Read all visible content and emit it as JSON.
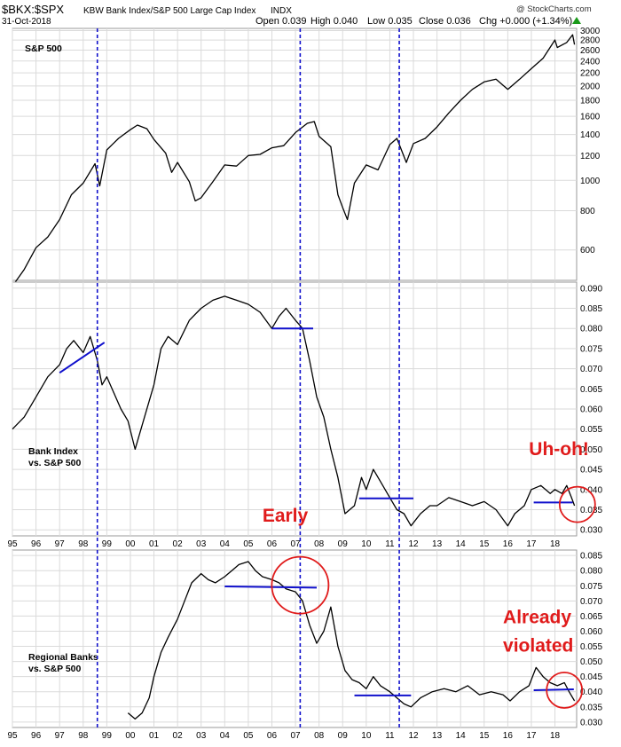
{
  "header": {
    "symbol": "$BKX:$SPX",
    "description": "KBW Bank Index/S&P 500 Large Cap Index",
    "exchange": "INDX",
    "date": "31-Oct-2018",
    "credit": "@ StockCharts.com",
    "ohlc": [
      {
        "label": "Open",
        "value": "0.039"
      },
      {
        "label": "High",
        "value": "0.040"
      },
      {
        "label": "Low",
        "value": "0.035"
      },
      {
        "label": "Close",
        "value": "0.036"
      },
      {
        "label": "Chg",
        "value": "+0.000 (+1.34%)"
      }
    ],
    "change_color": "#1a9a1a"
  },
  "colors": {
    "price": "#000000",
    "grid": "#dadada",
    "vertical_markers": "#1010cc",
    "trend_lines": "#1010cc",
    "annotations": "#e01b1b"
  },
  "chart_data": [
    {
      "type": "line",
      "name": "S&P 500",
      "title": "S&P 500",
      "y_scale": "log",
      "ylim": [
        480,
        3050
      ],
      "yticks": [
        600,
        800,
        1000,
        1200,
        1400,
        1600,
        1800,
        2000,
        2200,
        2400,
        2600,
        2800,
        3000
      ],
      "x": [
        1995.0,
        1995.5,
        1996.0,
        1996.5,
        1997.0,
        1997.5,
        1998.0,
        1998.5,
        1998.7,
        1999.0,
        1999.5,
        2000.0,
        2000.3,
        2000.7,
        2001.0,
        2001.5,
        2001.75,
        2002.0,
        2002.5,
        2002.75,
        2003.0,
        2003.5,
        2004.0,
        2004.5,
        2005.0,
        2005.5,
        2006.0,
        2006.5,
        2007.0,
        2007.5,
        2007.8,
        2008.0,
        2008.5,
        2008.8,
        2009.0,
        2009.2,
        2009.5,
        2010.0,
        2010.5,
        2011.0,
        2011.3,
        2011.7,
        2012.0,
        2012.5,
        2013.0,
        2013.5,
        2014.0,
        2014.5,
        2015.0,
        2015.5,
        2016.0,
        2016.5,
        2017.0,
        2017.5,
        2018.0,
        2018.1,
        2018.5,
        2018.75,
        2018.83
      ],
      "values": [
        460,
        520,
        610,
        660,
        750,
        900,
        980,
        1130,
        960,
        1250,
        1360,
        1450,
        1500,
        1460,
        1350,
        1220,
        1060,
        1140,
        990,
        860,
        880,
        990,
        1120,
        1110,
        1200,
        1210,
        1270,
        1290,
        1420,
        1520,
        1540,
        1380,
        1280,
        900,
        820,
        750,
        980,
        1120,
        1080,
        1300,
        1360,
        1140,
        1310,
        1360,
        1480,
        1640,
        1800,
        1950,
        2060,
        2100,
        1950,
        2100,
        2270,
        2450,
        2800,
        2650,
        2750,
        2910,
        2710
      ]
    },
    {
      "type": "line",
      "name": "Bank Index vs. S&P 500",
      "title": "Bank Index\nvs. S&P 500",
      "ylim": [
        0.0285,
        0.0915
      ],
      "yticks": [
        0.03,
        0.035,
        0.04,
        0.045,
        0.05,
        0.055,
        0.06,
        0.065,
        0.07,
        0.075,
        0.08,
        0.085,
        0.09
      ],
      "x": [
        1995.0,
        1995.5,
        1996.0,
        1996.5,
        1997.0,
        1997.3,
        1997.6,
        1998.0,
        1998.3,
        1998.6,
        1998.8,
        1999.0,
        1999.3,
        1999.6,
        1999.9,
        2000.2,
        2000.6,
        2001.0,
        2001.3,
        2001.6,
        2002.0,
        2002.5,
        2003.0,
        2003.5,
        2004.0,
        2004.5,
        2005.0,
        2005.5,
        2006.0,
        2006.3,
        2006.6,
        2007.0,
        2007.3,
        2007.6,
        2007.9,
        2008.2,
        2008.5,
        2008.8,
        2009.1,
        2009.5,
        2009.8,
        2010.0,
        2010.3,
        2010.6,
        2011.0,
        2011.3,
        2011.6,
        2011.9,
        2012.3,
        2012.7,
        2013.0,
        2013.5,
        2014.0,
        2014.5,
        2015.0,
        2015.5,
        2016.0,
        2016.3,
        2016.7,
        2017.0,
        2017.4,
        2017.8,
        2018.0,
        2018.3,
        2018.5,
        2018.7,
        2018.83
      ],
      "values": [
        0.055,
        0.058,
        0.063,
        0.068,
        0.071,
        0.075,
        0.077,
        0.074,
        0.078,
        0.072,
        0.066,
        0.068,
        0.064,
        0.06,
        0.057,
        0.05,
        0.058,
        0.066,
        0.075,
        0.078,
        0.076,
        0.082,
        0.085,
        0.087,
        0.088,
        0.087,
        0.086,
        0.084,
        0.08,
        0.083,
        0.085,
        0.082,
        0.08,
        0.072,
        0.063,
        0.058,
        0.05,
        0.043,
        0.034,
        0.036,
        0.043,
        0.04,
        0.045,
        0.042,
        0.038,
        0.035,
        0.034,
        0.031,
        0.034,
        0.036,
        0.036,
        0.038,
        0.037,
        0.036,
        0.037,
        0.035,
        0.031,
        0.034,
        0.036,
        0.04,
        0.041,
        0.039,
        0.04,
        0.039,
        0.041,
        0.038,
        0.036
      ],
      "title_lines": [
        "Bank Index",
        "vs. S&P 500"
      ]
    },
    {
      "type": "line",
      "name": "Regional Banks vs. S&P 500",
      "title": "Regional Banks\nvs. S&P 500",
      "ylim": [
        0.0282,
        0.0868
      ],
      "yticks": [
        0.03,
        0.035,
        0.04,
        0.045,
        0.05,
        0.055,
        0.06,
        0.065,
        0.07,
        0.075,
        0.08,
        0.085
      ],
      "x": [
        1999.9,
        2000.2,
        2000.5,
        2000.8,
        2001.0,
        2001.3,
        2001.6,
        2002.0,
        2002.3,
        2002.6,
        2003.0,
        2003.3,
        2003.6,
        2004.0,
        2004.3,
        2004.6,
        2005.0,
        2005.3,
        2005.6,
        2006.0,
        2006.3,
        2006.6,
        2007.0,
        2007.3,
        2007.6,
        2007.9,
        2008.2,
        2008.5,
        2008.8,
        2009.1,
        2009.4,
        2009.7,
        2010.0,
        2010.3,
        2010.6,
        2011.0,
        2011.3,
        2011.6,
        2011.9,
        2012.3,
        2012.8,
        2013.3,
        2013.8,
        2014.3,
        2014.8,
        2015.3,
        2015.8,
        2016.1,
        2016.5,
        2016.9,
        2017.2,
        2017.5,
        2017.8,
        2018.1,
        2018.4,
        2018.6,
        2018.83
      ],
      "values": [
        0.033,
        0.031,
        0.033,
        0.038,
        0.045,
        0.053,
        0.058,
        0.064,
        0.07,
        0.076,
        0.079,
        0.077,
        0.076,
        0.078,
        0.08,
        0.082,
        0.083,
        0.08,
        0.078,
        0.077,
        0.076,
        0.074,
        0.073,
        0.07,
        0.062,
        0.056,
        0.06,
        0.068,
        0.055,
        0.047,
        0.044,
        0.043,
        0.041,
        0.045,
        0.042,
        0.04,
        0.038,
        0.036,
        0.035,
        0.038,
        0.04,
        0.041,
        0.04,
        0.042,
        0.039,
        0.04,
        0.039,
        0.037,
        0.04,
        0.042,
        0.048,
        0.045,
        0.043,
        0.042,
        0.043,
        0.04,
        0.037
      ],
      "title_lines": [
        "Regional Banks",
        "vs. S&P 500"
      ]
    }
  ],
  "x_axis": {
    "start_year": 1995,
    "end_year": 2018.92,
    "labels": [
      "95",
      "96",
      "97",
      "98",
      "99",
      "00",
      "01",
      "02",
      "03",
      "04",
      "05",
      "06",
      "07",
      "08",
      "09",
      "10",
      "11",
      "12",
      "13",
      "14",
      "15",
      "16",
      "17",
      "18"
    ]
  },
  "vertical_markers": [
    1998.6,
    2007.2,
    2011.4
  ],
  "trend_lines": [
    {
      "panel": 1,
      "from": [
        1997.0,
        0.069
      ],
      "to": [
        1998.9,
        0.0765
      ]
    },
    {
      "panel": 1,
      "from": [
        2006.0,
        0.08
      ],
      "to": [
        2007.75,
        0.08
      ]
    },
    {
      "panel": 1,
      "from": [
        2009.7,
        0.0378
      ],
      "to": [
        2012.0,
        0.0378
      ]
    },
    {
      "panel": 1,
      "from": [
        2017.1,
        0.0368
      ],
      "to": [
        2018.75,
        0.0368
      ]
    },
    {
      "panel": 2,
      "from": [
        2004.0,
        0.0748
      ],
      "to": [
        2007.9,
        0.0744
      ]
    },
    {
      "panel": 2,
      "from": [
        2009.5,
        0.0388
      ],
      "to": [
        2011.9,
        0.0388
      ]
    },
    {
      "panel": 2,
      "from": [
        2017.1,
        0.0405
      ],
      "to": [
        2018.8,
        0.0408
      ]
    }
  ],
  "circles": [
    {
      "panel": 1,
      "center": [
        2018.5,
        0.0363
      ],
      "radius_label": "circle"
    },
    {
      "panel": 2,
      "center": [
        2007.2,
        0.0752
      ],
      "radius_label": "circle"
    },
    {
      "panel": 2,
      "center": [
        2018.4,
        0.0405
      ],
      "radius_label": "circle"
    }
  ],
  "annotations": [
    {
      "panel": 1,
      "text": "Uh-oh!",
      "at": [
        2016.9,
        0.0485
      ]
    },
    {
      "panel": 1,
      "text": "Early",
      "at": [
        2005.6,
        0.032
      ]
    },
    {
      "panel": 2,
      "text": "Already",
      "at": [
        2015.8,
        0.0627
      ]
    },
    {
      "panel": 2,
      "text": "violated",
      "at": [
        2015.8,
        0.0533
      ]
    }
  ]
}
